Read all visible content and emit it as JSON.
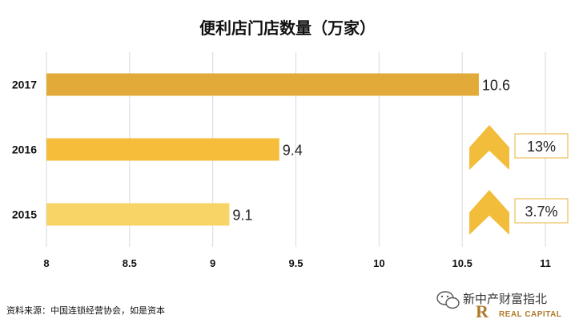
{
  "chart_data": {
    "type": "bar",
    "orientation": "horizontal",
    "title": "便利店门店数量（万家）",
    "categories": [
      "2017",
      "2016",
      "2015"
    ],
    "values": [
      10.6,
      9.4,
      9.1
    ],
    "value_labels": [
      "10.6",
      "9.4",
      "9.1"
    ],
    "bar_colors": [
      "#e2aa38",
      "#f5bd3a",
      "#f7d465"
    ],
    "xlim": [
      8,
      11
    ],
    "x_ticks": [
      "8",
      "8.5",
      "9",
      "9.5",
      "10",
      "10.5",
      "11"
    ],
    "grid": "vertical",
    "annotations": [
      {
        "label": "13%",
        "between": [
          "2016",
          "2017"
        ]
      },
      {
        "label": "3.7%",
        "between": [
          "2015",
          "2016"
        ]
      }
    ],
    "xlabel": "",
    "ylabel": ""
  },
  "source_text": "资料来源：中国连锁经营协会，如是资本",
  "watermark": {
    "name": "新中产财富指北",
    "sub": "REAL CAPITAL",
    "logo_letter": "R"
  },
  "colors": {
    "arrow": "#f2bd3a",
    "annotation_border": "#e8b23a",
    "grid": "#d9d9d9"
  }
}
